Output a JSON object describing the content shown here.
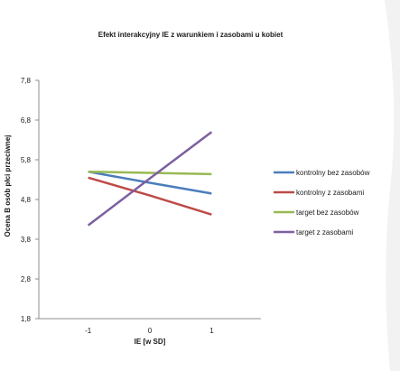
{
  "chart_data": {
    "type": "line",
    "title": "Efekt interakcyjny IE z warunkiem i zasobami u kobiet",
    "xlabel": "IE [w SD]",
    "ylabel": "Ocena B osób płci przeciwnej",
    "x": [
      -1,
      0,
      1
    ],
    "x_tick_labels": [
      "-1",
      "0",
      "1"
    ],
    "xlim": [
      -1.8,
      1.8
    ],
    "ylim": [
      1.8,
      7.8
    ],
    "y_ticks": [
      1.8,
      2.8,
      3.8,
      4.8,
      5.8,
      6.8,
      7.8
    ],
    "y_tick_labels": [
      "1,8",
      "2,8",
      "3,8",
      "4,8",
      "5,8",
      "6,8",
      "7,8"
    ],
    "grid": false,
    "legend_position": "right",
    "series": [
      {
        "name": "kontrolny bez zasobów",
        "values": [
          5.5,
          5.22,
          4.95
        ],
        "color": "#4a7ebb"
      },
      {
        "name": "kontrolny z zasobami",
        "values": [
          5.35,
          4.9,
          4.42
        ],
        "color": "#be4b48"
      },
      {
        "name": "target bez zasobów",
        "values": [
          5.5,
          5.47,
          5.44
        ],
        "color": "#98b954"
      },
      {
        "name": "target z zasobami",
        "values": [
          4.15,
          5.33,
          6.5
        ],
        "color": "#7d5fa0"
      }
    ]
  }
}
